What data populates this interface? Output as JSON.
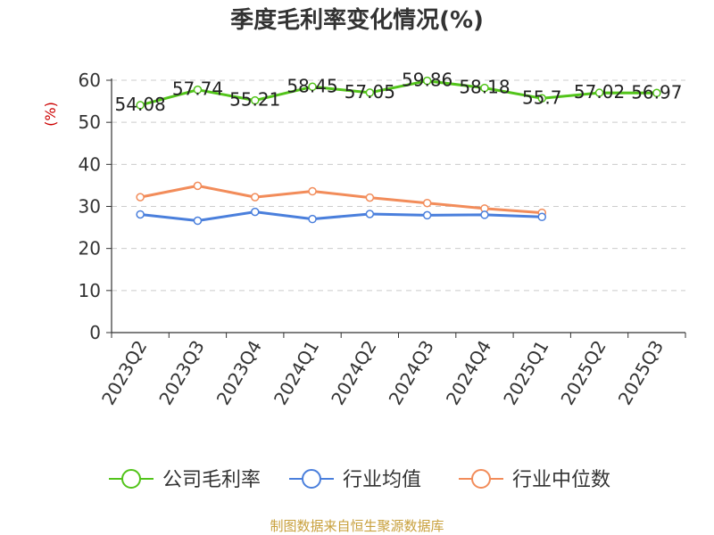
{
  "chart_data": {
    "type": "line",
    "title": "季度毛利率变化情况(%)",
    "ylabel": "(%)",
    "xlabel": "",
    "ylim": [
      0,
      60
    ],
    "yticks": [
      0,
      10,
      20,
      30,
      40,
      50,
      60
    ],
    "grid": true,
    "legend_position": "bottom",
    "categories": [
      "2023Q2",
      "2023Q3",
      "2023Q4",
      "2024Q1",
      "2024Q2",
      "2024Q3",
      "2024Q4",
      "2025Q1",
      "2025Q2",
      "2025Q3"
    ],
    "series": [
      {
        "name": "公司毛利率",
        "color": "#52c41a",
        "values": [
          54.08,
          57.74,
          55.21,
          58.45,
          57.05,
          59.86,
          58.18,
          55.7,
          57.02,
          56.97
        ],
        "labels": [
          "54.08",
          "57.74",
          "55.21",
          "58.45",
          "57.05",
          "59.86",
          "58.18",
          "55.7",
          "57.02",
          "56.97"
        ]
      },
      {
        "name": "行业均值",
        "color": "#4a7fdc",
        "values": [
          28.1,
          26.6,
          28.7,
          27.0,
          28.2,
          27.9,
          28.0,
          27.5,
          null,
          null
        ]
      },
      {
        "name": "行业中位数",
        "color": "#f28c5a",
        "values": [
          32.2,
          34.9,
          32.2,
          33.6,
          32.1,
          30.8,
          29.5,
          28.5,
          null,
          null
        ]
      }
    ]
  },
  "source": "制图数据来自恒生聚源数据库"
}
